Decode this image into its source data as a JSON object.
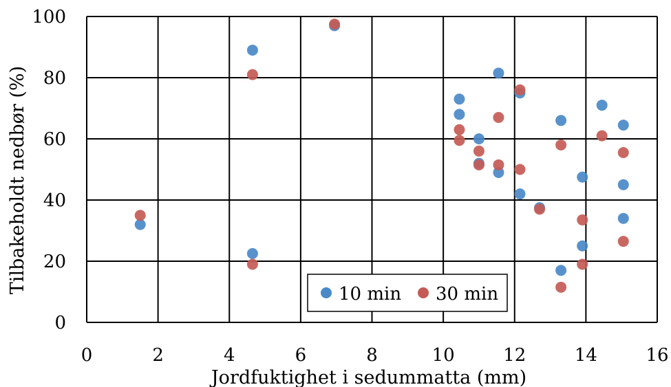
{
  "chart_data": {
    "type": "scatter",
    "title": "",
    "xlabel": "Jordfuktighet i sedummatta (mm)",
    "ylabel": "Tilbakeholdt nedbør (%)",
    "xlim": [
      0,
      16
    ],
    "ylim": [
      0,
      100
    ],
    "xticks": [
      0,
      2,
      4,
      6,
      8,
      10,
      12,
      14,
      16
    ],
    "yticks": [
      0,
      20,
      40,
      60,
      80,
      100
    ],
    "grid": true,
    "legend_position": "bottom-center",
    "series": [
      {
        "name": "10 min",
        "color": "#4A89C8",
        "points": [
          [
            1.5,
            32
          ],
          [
            4.65,
            89
          ],
          [
            4.65,
            22.5
          ],
          [
            6.95,
            97
          ],
          [
            10.45,
            73
          ],
          [
            10.45,
            68
          ],
          [
            11.0,
            60
          ],
          [
            11.0,
            52
          ],
          [
            11.55,
            81.5
          ],
          [
            11.55,
            49
          ],
          [
            12.15,
            75
          ],
          [
            12.15,
            42
          ],
          [
            12.7,
            37.5
          ],
          [
            13.3,
            66
          ],
          [
            13.3,
            17
          ],
          [
            13.9,
            47.5
          ],
          [
            13.9,
            25
          ],
          [
            14.45,
            71
          ],
          [
            15.05,
            64.5
          ],
          [
            15.05,
            45
          ],
          [
            15.05,
            34
          ]
        ]
      },
      {
        "name": "30 min",
        "color": "#C45B55",
        "points": [
          [
            1.5,
            35
          ],
          [
            4.65,
            81
          ],
          [
            4.65,
            19
          ],
          [
            6.95,
            97.5
          ],
          [
            10.45,
            63
          ],
          [
            10.45,
            59.5
          ],
          [
            11.0,
            56
          ],
          [
            11.0,
            51.5
          ],
          [
            11.55,
            67
          ],
          [
            11.55,
            51.5
          ],
          [
            12.15,
            76
          ],
          [
            12.15,
            50
          ],
          [
            12.7,
            37
          ],
          [
            13.3,
            58
          ],
          [
            13.3,
            11.5
          ],
          [
            13.9,
            33.5
          ],
          [
            13.9,
            19
          ],
          [
            14.45,
            61
          ],
          [
            15.05,
            55.5
          ],
          [
            15.05,
            26.5
          ]
        ]
      }
    ]
  }
}
